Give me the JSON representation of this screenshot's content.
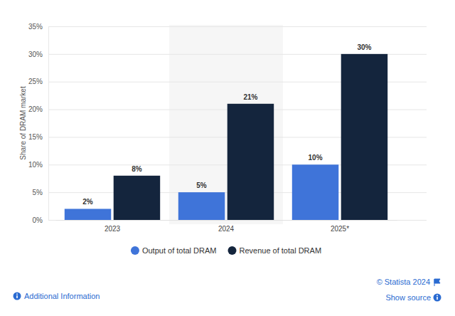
{
  "chart_data": {
    "type": "bar",
    "y_label": "Share of DRAM market",
    "categories": [
      "2023",
      "2024",
      "2025*"
    ],
    "series": [
      {
        "name": "Output of total DRAM",
        "color": "#3f74d9",
        "values": [
          2,
          5,
          10
        ],
        "value_labels": [
          "2%",
          "5%",
          "10%"
        ]
      },
      {
        "name": "Revenue of total DRAM",
        "color": "#14253d",
        "values": [
          8,
          21,
          30
        ],
        "value_labels": [
          "8%",
          "21%",
          "30%"
        ]
      }
    ],
    "ylim": [
      0,
      35
    ],
    "yticks": [
      {
        "value": 0,
        "label": "0%"
      },
      {
        "value": 5,
        "label": "5%"
      },
      {
        "value": 10,
        "label": "10%"
      },
      {
        "value": 15,
        "label": "15%"
      },
      {
        "value": 20,
        "label": "20%"
      },
      {
        "value": 25,
        "label": "25%"
      },
      {
        "value": 30,
        "label": "30%"
      },
      {
        "value": 35,
        "label": "35%"
      }
    ],
    "grid": true,
    "data_labels": true,
    "legend": "bottom",
    "annotations": [
      "© Statista 2024",
      "Additional Information",
      "Show source"
    ]
  }
}
